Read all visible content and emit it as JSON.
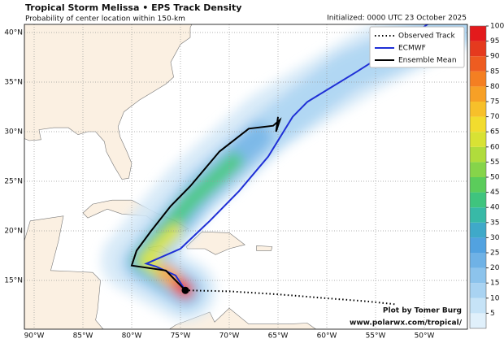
{
  "header": {
    "title": "Tropical Storm Melissa • EPS Track Density",
    "subtitle": "Probability of center location within 150-km",
    "initialized": "Initialized: 0000 UTC 23 October 2025"
  },
  "legend": [
    {
      "label": "Observed Track",
      "color": "#000000"
    },
    {
      "label": "ECMWF",
      "color": "#1f2fd6"
    },
    {
      "label": "Ensemble Mean",
      "color": "#000000"
    }
  ],
  "longitude_labels": [
    "90°W",
    "85°W",
    "80°W",
    "75°W",
    "70°W",
    "65°W",
    "60°W",
    "55°W",
    "50°W"
  ],
  "latitude_labels": [
    "40°N",
    "35°N",
    "30°N",
    "25°N",
    "20°N",
    "15°N"
  ],
  "colorbar": {
    "range": [
      0,
      100
    ],
    "ticks": [
      5,
      10,
      15,
      20,
      25,
      30,
      35,
      40,
      45,
      50,
      55,
      60,
      65,
      70,
      75,
      80,
      85,
      90,
      95,
      100
    ],
    "colors": [
      "#e0f0fb",
      "#c6e3f7",
      "#a9d3f2",
      "#8cc3ec",
      "#6fb2e6",
      "#52a2e0",
      "#3fa9c9",
      "#38b9a7",
      "#3fc47e",
      "#5bcc5b",
      "#86d44a",
      "#b0dc3c",
      "#d8e234",
      "#f2dc2e",
      "#f7c02a",
      "#f7a026",
      "#f47f22",
      "#ee5c20",
      "#e53a1e",
      "#e31a1c"
    ]
  },
  "credit": [
    "Plot by Tomer Burg",
    "www.polarwx.com/tropical/"
  ]
}
